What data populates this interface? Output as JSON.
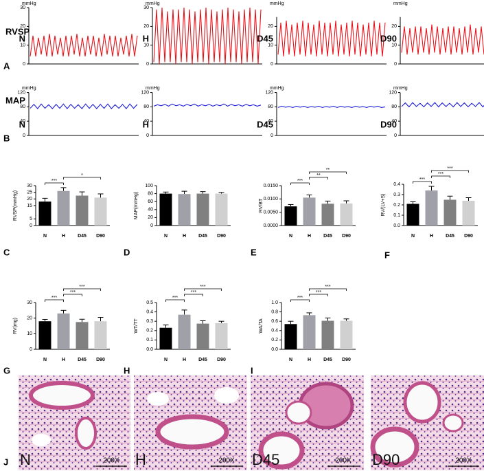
{
  "figure": {
    "row_labels": [
      "RVSP",
      "MAP"
    ],
    "letters": [
      "A",
      "B",
      "C",
      "D",
      "E",
      "F",
      "G",
      "H",
      "I",
      "J"
    ],
    "histology": [
      {
        "label": "N",
        "scale": "200X"
      },
      {
        "label": "H",
        "scale": "200X"
      },
      {
        "label": "D45",
        "scale": "200X"
      },
      {
        "label": "D90",
        "scale": "200X"
      }
    ]
  },
  "chart_data": [
    {
      "type": "line",
      "label": "N",
      "ylabel": "mmHg",
      "color": "#e8121a",
      "ylim": [
        0,
        30
      ],
      "yticks": [
        0,
        10,
        20,
        30
      ],
      "values": [
        4,
        15,
        4,
        14,
        5,
        15,
        4,
        16,
        4,
        15,
        5,
        14,
        4,
        15,
        4,
        15,
        5,
        16,
        4,
        14,
        4,
        15,
        5,
        15,
        4,
        14,
        4,
        16,
        5,
        15,
        4,
        15,
        4,
        14,
        5,
        15,
        4,
        16,
        4,
        15
      ]
    },
    {
      "type": "line",
      "label": "H",
      "ylabel": "mmHg",
      "color": "#e8121a",
      "ylim": [
        0,
        30
      ],
      "yticks": [
        0,
        10,
        20,
        30
      ],
      "values": [
        1,
        29,
        0,
        30,
        1,
        28,
        1,
        29,
        0,
        29,
        1,
        30,
        1,
        29,
        0,
        28,
        1,
        29,
        1,
        30,
        0,
        29,
        1,
        28,
        1,
        29,
        0,
        30,
        1,
        29,
        1,
        28,
        0,
        29,
        1,
        30,
        1,
        29,
        0,
        29
      ]
    },
    {
      "type": "line",
      "label": "D45",
      "ylabel": "mmHg",
      "color": "#e8121a",
      "ylim": [
        0,
        25
      ],
      "yticks": [
        0,
        10,
        20
      ],
      "values": [
        5,
        22,
        4,
        23,
        5,
        21,
        4,
        22,
        5,
        23,
        4,
        22,
        5,
        21,
        4,
        23,
        5,
        22,
        4,
        22,
        5,
        23,
        4,
        21,
        5,
        22,
        4,
        23,
        5,
        22,
        4,
        21,
        5,
        22,
        4,
        23,
        5,
        22,
        4,
        22
      ]
    },
    {
      "type": "line",
      "label": "D90",
      "ylabel": "mmHg",
      "color": "#e8121a",
      "ylim": [
        0,
        25
      ],
      "yticks": [
        0,
        10,
        20
      ],
      "values": [
        6,
        20,
        5,
        19,
        6,
        20,
        5,
        20,
        6,
        19,
        5,
        21,
        6,
        20,
        5,
        19,
        6,
        20,
        5,
        20,
        6,
        19,
        5,
        20,
        6,
        21,
        5,
        19,
        6,
        20,
        5,
        20,
        6,
        19,
        5,
        20,
        6,
        20,
        5,
        19
      ]
    },
    {
      "type": "line",
      "label": "N",
      "ylabel": "mmHg",
      "color": "#1a1ad8",
      "ylim": [
        0,
        120
      ],
      "yticks": [
        0,
        40,
        80,
        120
      ],
      "values": [
        76,
        87,
        75,
        88,
        76,
        86,
        75,
        87,
        76,
        88,
        75,
        87,
        76,
        86,
        75,
        88,
        76,
        87,
        75,
        87,
        76,
        88,
        75,
        86,
        76,
        87,
        75,
        88,
        76,
        87
      ]
    },
    {
      "type": "line",
      "label": "H",
      "ylabel": "mmHg",
      "color": "#1a1ad8",
      "ylim": [
        0,
        120
      ],
      "yticks": [
        0,
        40,
        80,
        120
      ],
      "values": [
        82,
        86,
        83,
        87,
        82,
        88,
        83,
        86,
        82,
        87,
        83,
        88,
        82,
        86,
        83,
        87,
        82,
        86,
        83,
        88,
        82,
        87,
        83,
        86,
        82,
        87,
        83,
        86,
        82,
        85
      ]
    },
    {
      "type": "line",
      "label": "D45",
      "ylabel": "mmHg",
      "color": "#1a1ad8",
      "ylim": [
        0,
        120
      ],
      "yticks": [
        0,
        40,
        80,
        120
      ],
      "values": [
        78,
        82,
        79,
        81,
        78,
        82,
        79,
        82,
        78,
        81,
        79,
        82,
        78,
        81,
        79,
        82,
        78,
        82,
        79,
        81,
        78,
        82,
        79,
        81,
        78,
        82,
        79,
        82,
        78,
        80
      ]
    },
    {
      "type": "line",
      "label": "D90",
      "ylabel": "mmHg",
      "color": "#1a1ad8",
      "ylim": [
        0,
        120
      ],
      "yticks": [
        0,
        40,
        80,
        120
      ],
      "values": [
        81,
        91,
        80,
        92,
        81,
        90,
        80,
        91,
        81,
        92,
        80,
        91,
        81,
        90,
        80,
        92,
        81,
        91,
        80,
        90,
        81,
        92,
        80,
        91,
        81,
        90,
        80,
        91,
        81,
        89
      ]
    },
    {
      "type": "bar",
      "ylabel": "RVSP(mmHg)",
      "categories": [
        "N",
        "H",
        "D45",
        "D90"
      ],
      "colors": [
        "#000000",
        "#a0a0a8",
        "#808080",
        "#d0d0d0"
      ],
      "values": [
        18,
        26,
        22.5,
        21
      ],
      "errors": [
        2.5,
        2.5,
        2.8,
        2.8
      ],
      "ylim": [
        0,
        30
      ],
      "yticks": [
        0,
        5,
        15,
        20,
        25,
        30
      ],
      "brackets": [
        {
          "from": "N",
          "to": "H",
          "label": "***"
        },
        {
          "from": "H",
          "to": "D90",
          "label": "*"
        }
      ]
    },
    {
      "type": "bar",
      "ylabel": "MAP(mmHg)",
      "categories": [
        "N",
        "H",
        "D45",
        "D90"
      ],
      "colors": [
        "#000000",
        "#a0a0a8",
        "#808080",
        "#d0d0d0"
      ],
      "values": [
        80,
        79,
        80,
        80
      ],
      "errors": [
        4,
        7,
        5,
        3
      ],
      "ylim": [
        0,
        100
      ],
      "yticks": [
        0,
        20,
        40,
        60,
        80,
        100
      ],
      "brackets": []
    },
    {
      "type": "bar",
      "ylabel": "RV/BT",
      "categories": [
        "N",
        "H",
        "D45",
        "D90"
      ],
      "colors": [
        "#000000",
        "#a0a0a8",
        "#808080",
        "#d0d0d0"
      ],
      "values": [
        0.0072,
        0.0105,
        0.0082,
        0.0083
      ],
      "errors": [
        0.0007,
        0.001,
        0.001,
        0.001
      ],
      "ylim": [
        0,
        0.015
      ],
      "yticks": [
        {
          "value": 0,
          "label": "0.0000"
        },
        {
          "value": 0.005,
          "label": "0.0050"
        },
        {
          "value": 0.01,
          "label": "0.0100"
        },
        {
          "value": 0.015,
          "label": "0.0150"
        }
      ],
      "brackets": [
        {
          "from": "N",
          "to": "H",
          "label": "***"
        },
        {
          "from": "H",
          "to": "D45",
          "label": "**"
        },
        {
          "from": "H",
          "to": "D90",
          "label": "**"
        }
      ]
    },
    {
      "type": "bar",
      "ylabel": "RV/(LV+S)",
      "categories": [
        "N",
        "H",
        "D45",
        "D90"
      ],
      "colors": [
        "#000000",
        "#a0a0a8",
        "#808080",
        "#d0d0d0"
      ],
      "values": [
        0.21,
        0.34,
        0.25,
        0.24
      ],
      "errors": [
        0.02,
        0.04,
        0.035,
        0.03
      ],
      "ylim": [
        0,
        0.4
      ],
      "yticks": [
        {
          "value": 0,
          "label": "0.0"
        },
        0.1,
        0.2,
        0.3,
        0.4
      ],
      "brackets": [
        {
          "from": "N",
          "to": "H",
          "label": "***"
        },
        {
          "from": "H",
          "to": "D45",
          "label": "***"
        },
        {
          "from": "H",
          "to": "D90",
          "label": "***"
        }
      ]
    },
    {
      "type": "bar",
      "ylabel": "RV(mg)",
      "categories": [
        "N",
        "H",
        "D45",
        "D90"
      ],
      "colors": [
        "#000000",
        "#a0a0a8",
        "#808080",
        "#d0d0d0"
      ],
      "values": [
        18,
        23,
        17.5,
        18
      ],
      "errors": [
        1.2,
        2,
        1.8,
        2.5
      ],
      "ylim": [
        0,
        30
      ],
      "yticks": [
        0,
        10,
        20,
        30
      ],
      "brackets": [
        {
          "from": "N",
          "to": "H",
          "label": "***"
        },
        {
          "from": "H",
          "to": "D45",
          "label": "***"
        },
        {
          "from": "H",
          "to": "D90",
          "label": "***"
        }
      ]
    },
    {
      "type": "bar",
      "ylabel": "WT/TT",
      "categories": [
        "N",
        "H",
        "D45",
        "D90"
      ],
      "colors": [
        "#000000",
        "#a0a0a8",
        "#808080",
        "#d0d0d0"
      ],
      "values": [
        0.23,
        0.37,
        0.275,
        0.28
      ],
      "errors": [
        0.03,
        0.05,
        0.03,
        0.02
      ],
      "ylim": [
        0,
        0.5
      ],
      "yticks": [
        {
          "value": 0,
          "label": "0.0"
        },
        0.1,
        0.2,
        0.3,
        0.4,
        0.5
      ],
      "brackets": [
        {
          "from": "N",
          "to": "H",
          "label": "***"
        },
        {
          "from": "H",
          "to": "D45",
          "label": "***"
        },
        {
          "from": "H",
          "to": "D90",
          "label": "***"
        }
      ]
    },
    {
      "type": "bar",
      "ylabel": "WA/TA",
      "categories": [
        "N",
        "H",
        "D45",
        "D90"
      ],
      "colors": [
        "#000000",
        "#a0a0a8",
        "#808080",
        "#d0d0d0"
      ],
      "values": [
        0.54,
        0.73,
        0.61,
        0.61
      ],
      "errors": [
        0.06,
        0.05,
        0.06,
        0.04
      ],
      "ylim": [
        0,
        1
      ],
      "yticks": [
        {
          "value": 0,
          "label": "0.0"
        },
        0.2,
        0.4,
        0.6,
        0.8,
        {
          "value": 1,
          "label": "1.0"
        }
      ],
      "brackets": [
        {
          "from": "N",
          "to": "H",
          "label": "***"
        },
        {
          "from": "H",
          "to": "D45",
          "label": "***"
        },
        {
          "from": "H",
          "to": "D90",
          "label": "***"
        }
      ]
    }
  ]
}
